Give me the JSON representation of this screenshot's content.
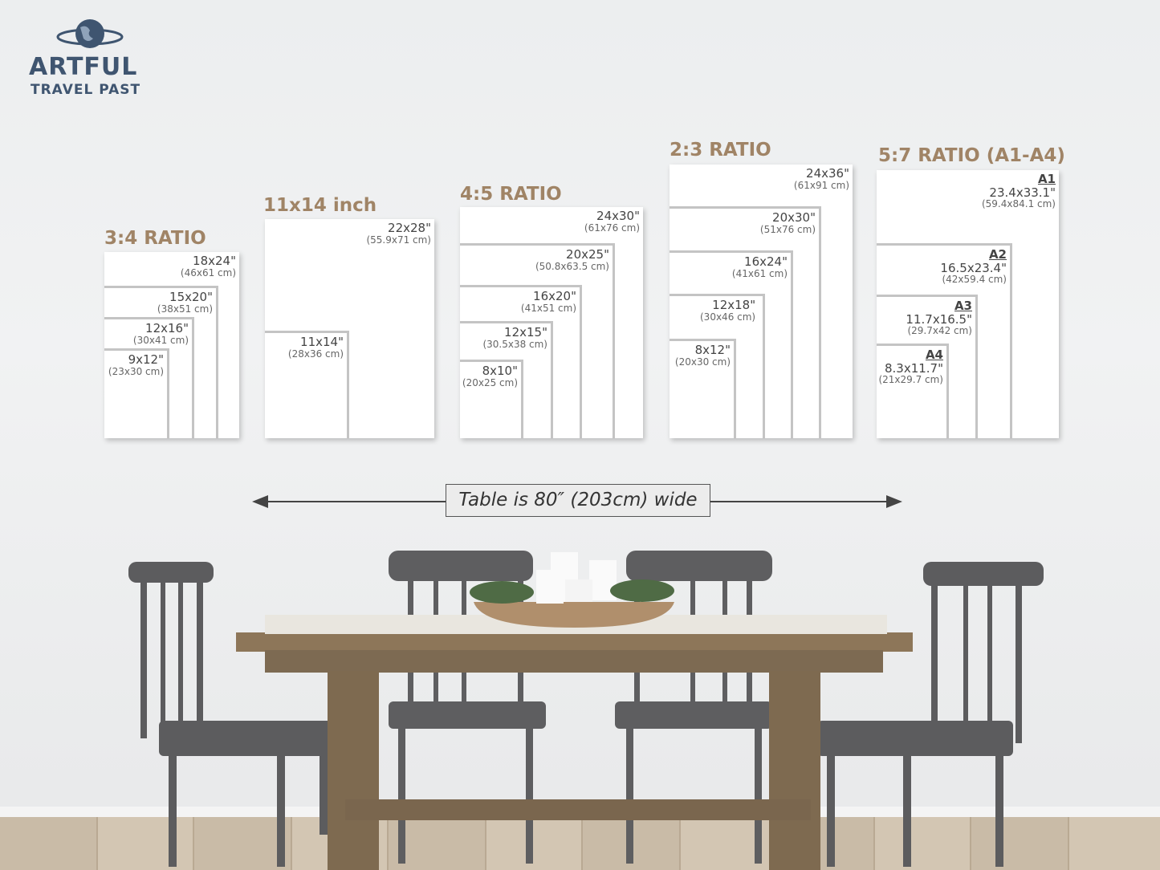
{
  "brand": {
    "line1": "ARTFUL",
    "line2": "TRAVEL PAST",
    "icon": "globe-icon"
  },
  "groups": [
    {
      "title": "3:4 RATIO",
      "sizes": [
        {
          "in": "18x24\"",
          "cm": "(46x61 cm)"
        },
        {
          "in": "15x20\"",
          "cm": "(38x51 cm)"
        },
        {
          "in": "12x16\"",
          "cm": "(30x41 cm)"
        },
        {
          "in": "9x12\"",
          "cm": "(23x30 cm)"
        }
      ]
    },
    {
      "title": "11x14 inch",
      "sizes": [
        {
          "in": "22x28\"",
          "cm": "(55.9x71 cm)"
        },
        {
          "in": "11x14\"",
          "cm": "(28x36 cm)"
        }
      ]
    },
    {
      "title": "4:5 RATIO",
      "sizes": [
        {
          "in": "24x30\"",
          "cm": "(61x76 cm)"
        },
        {
          "in": "20x25\"",
          "cm": "(50.8x63.5 cm)"
        },
        {
          "in": "16x20\"",
          "cm": "(41x51 cm)"
        },
        {
          "in": "12x15\"",
          "cm": "(30.5x38 cm)"
        },
        {
          "in": "8x10\"",
          "cm": "(20x25 cm)"
        }
      ]
    },
    {
      "title": "2:3 RATIO",
      "sizes": [
        {
          "in": "24x36\"",
          "cm": "(61x91 cm)"
        },
        {
          "in": "20x30\"",
          "cm": "(51x76 cm)"
        },
        {
          "in": "16x24\"",
          "cm": "(41x61 cm)"
        },
        {
          "in": "12x18\"",
          "cm": "(30x46 cm)"
        },
        {
          "in": "8x12\"",
          "cm": "(20x30 cm)"
        }
      ]
    },
    {
      "title": "5:7 RATIO (A1-A4)",
      "sizes": [
        {
          "a": "A1",
          "in": "23.4x33.1\"",
          "cm": "(59.4x84.1 cm)"
        },
        {
          "a": "A2",
          "in": "16.5x23.4\"",
          "cm": "(42x59.4 cm)"
        },
        {
          "a": "A3",
          "in": "11.7x16.5\"",
          "cm": "(29.7x42 cm)"
        },
        {
          "a": "A4",
          "in": "8.3x11.7\"",
          "cm": "(21x29.7 cm)"
        }
      ]
    }
  ],
  "table_note": "Table is 80″ (203cm) wide",
  "colors": {
    "title": "#a08466",
    "brand": "#3f5570",
    "frame_border": "#c4c4c4"
  }
}
